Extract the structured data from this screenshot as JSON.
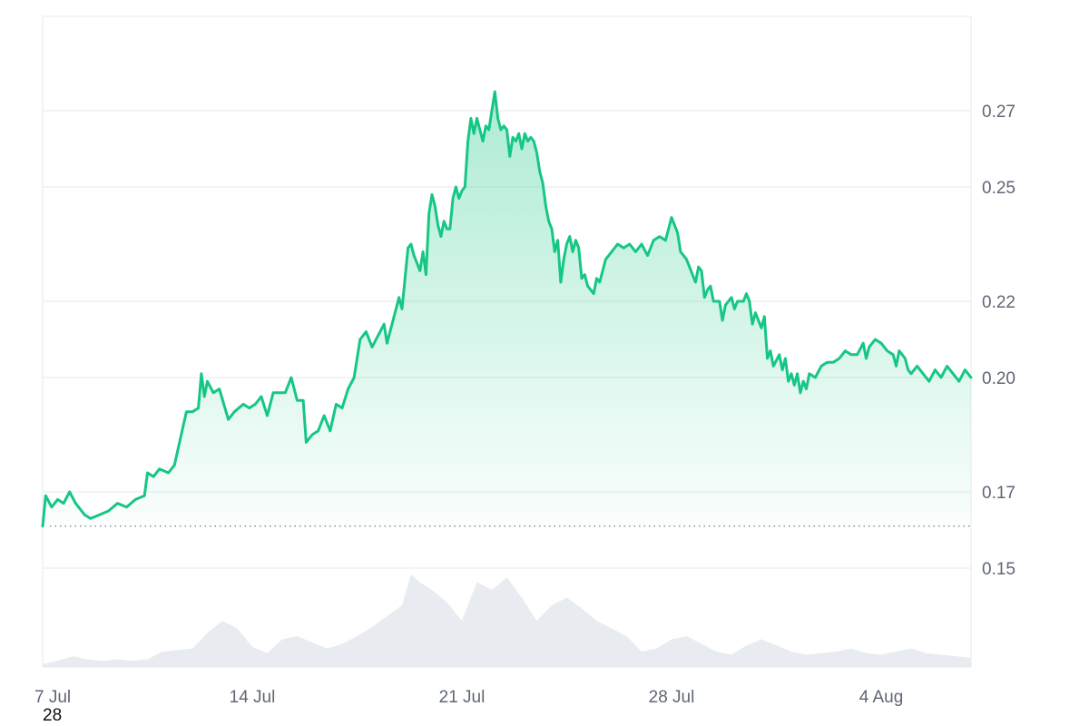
{
  "chart_data": {
    "type": "area",
    "y_ticks": [
      "0.27",
      "0.25",
      "0.22",
      "0.20",
      "0.17",
      "0.15"
    ],
    "y_tick_values": [
      0.27,
      0.25,
      0.22,
      0.2,
      0.17,
      0.15
    ],
    "ylim": [
      0.13,
      0.29
    ],
    "x_ticks": [
      "7 Jul",
      "14 Jul",
      "21 Jul",
      "28 Jul",
      "4 Aug"
    ],
    "x_tick_days": [
      0,
      7,
      14,
      21,
      28
    ],
    "xlim_days": [
      0,
      31
    ],
    "baseline": 0.161,
    "grid": true,
    "series": [
      {
        "values": [
          [
            0.0,
            0.161
          ],
          [
            0.1,
            0.169
          ],
          [
            0.3,
            0.166
          ],
          [
            0.5,
            0.168
          ],
          [
            0.7,
            0.167
          ],
          [
            0.9,
            0.17
          ],
          [
            1.1,
            0.167
          ],
          [
            1.4,
            0.164
          ],
          [
            1.6,
            0.163
          ],
          [
            1.9,
            0.164
          ],
          [
            2.2,
            0.165
          ],
          [
            2.5,
            0.167
          ],
          [
            2.8,
            0.166
          ],
          [
            3.1,
            0.168
          ],
          [
            3.4,
            0.169
          ],
          [
            3.5,
            0.175
          ],
          [
            3.7,
            0.174
          ],
          [
            3.9,
            0.176
          ],
          [
            4.2,
            0.175
          ],
          [
            4.4,
            0.177
          ],
          [
            4.6,
            0.184
          ],
          [
            4.8,
            0.191
          ],
          [
            5.0,
            0.191
          ],
          [
            5.2,
            0.192
          ],
          [
            5.3,
            0.201
          ],
          [
            5.4,
            0.195
          ],
          [
            5.5,
            0.199
          ],
          [
            5.7,
            0.196
          ],
          [
            5.9,
            0.197
          ],
          [
            6.2,
            0.189
          ],
          [
            6.4,
            0.191
          ],
          [
            6.7,
            0.193
          ],
          [
            6.9,
            0.192
          ],
          [
            7.1,
            0.193
          ],
          [
            7.3,
            0.195
          ],
          [
            7.5,
            0.19
          ],
          [
            7.7,
            0.196
          ],
          [
            7.9,
            0.196
          ],
          [
            8.1,
            0.196
          ],
          [
            8.3,
            0.2
          ],
          [
            8.5,
            0.194
          ],
          [
            8.7,
            0.194
          ],
          [
            8.8,
            0.183
          ],
          [
            9.0,
            0.185
          ],
          [
            9.2,
            0.186
          ],
          [
            9.4,
            0.19
          ],
          [
            9.6,
            0.186
          ],
          [
            9.8,
            0.193
          ],
          [
            10.0,
            0.192
          ],
          [
            10.2,
            0.197
          ],
          [
            10.4,
            0.2
          ],
          [
            10.6,
            0.21
          ],
          [
            10.8,
            0.212
          ],
          [
            11.0,
            0.208
          ],
          [
            11.2,
            0.211
          ],
          [
            11.4,
            0.214
          ],
          [
            11.5,
            0.209
          ],
          [
            11.7,
            0.215
          ],
          [
            11.9,
            0.221
          ],
          [
            12.0,
            0.218
          ],
          [
            12.1,
            0.226
          ],
          [
            12.2,
            0.234
          ],
          [
            12.3,
            0.235
          ],
          [
            12.4,
            0.232
          ],
          [
            12.5,
            0.23
          ],
          [
            12.6,
            0.228
          ],
          [
            12.7,
            0.233
          ],
          [
            12.8,
            0.227
          ],
          [
            12.9,
            0.243
          ],
          [
            13.0,
            0.248
          ],
          [
            13.1,
            0.245
          ],
          [
            13.2,
            0.24
          ],
          [
            13.3,
            0.237
          ],
          [
            13.4,
            0.241
          ],
          [
            13.5,
            0.239
          ],
          [
            13.6,
            0.239
          ],
          [
            13.7,
            0.247
          ],
          [
            13.8,
            0.25
          ],
          [
            13.9,
            0.247
          ],
          [
            14.0,
            0.249
          ],
          [
            14.1,
            0.25
          ],
          [
            14.2,
            0.262
          ],
          [
            14.3,
            0.268
          ],
          [
            14.4,
            0.264
          ],
          [
            14.5,
            0.268
          ],
          [
            14.6,
            0.265
          ],
          [
            14.7,
            0.262
          ],
          [
            14.8,
            0.266
          ],
          [
            14.9,
            0.265
          ],
          [
            15.0,
            0.27
          ],
          [
            15.1,
            0.275
          ],
          [
            15.2,
            0.268
          ],
          [
            15.3,
            0.265
          ],
          [
            15.4,
            0.266
          ],
          [
            15.5,
            0.265
          ],
          [
            15.6,
            0.258
          ],
          [
            15.7,
            0.263
          ],
          [
            15.8,
            0.262
          ],
          [
            15.9,
            0.264
          ],
          [
            16.0,
            0.26
          ],
          [
            16.1,
            0.264
          ],
          [
            16.2,
            0.262
          ],
          [
            16.3,
            0.263
          ],
          [
            16.4,
            0.262
          ],
          [
            16.5,
            0.259
          ],
          [
            16.6,
            0.254
          ],
          [
            16.7,
            0.251
          ],
          [
            16.8,
            0.245
          ],
          [
            16.9,
            0.241
          ],
          [
            17.0,
            0.239
          ],
          [
            17.1,
            0.233
          ],
          [
            17.2,
            0.236
          ],
          [
            17.3,
            0.225
          ],
          [
            17.4,
            0.231
          ],
          [
            17.5,
            0.235
          ],
          [
            17.6,
            0.237
          ],
          [
            17.7,
            0.233
          ],
          [
            17.8,
            0.236
          ],
          [
            17.9,
            0.234
          ],
          [
            18.0,
            0.226
          ],
          [
            18.1,
            0.227
          ],
          [
            18.2,
            0.224
          ],
          [
            18.4,
            0.222
          ],
          [
            18.5,
            0.226
          ],
          [
            18.6,
            0.225
          ],
          [
            18.8,
            0.231
          ],
          [
            19.0,
            0.233
          ],
          [
            19.2,
            0.235
          ],
          [
            19.4,
            0.234
          ],
          [
            19.6,
            0.235
          ],
          [
            19.8,
            0.233
          ],
          [
            20.0,
            0.235
          ],
          [
            20.2,
            0.232
          ],
          [
            20.4,
            0.236
          ],
          [
            20.6,
            0.237
          ],
          [
            20.8,
            0.236
          ],
          [
            21.0,
            0.242
          ],
          [
            21.1,
            0.24
          ],
          [
            21.2,
            0.238
          ],
          [
            21.3,
            0.233
          ],
          [
            21.4,
            0.232
          ],
          [
            21.5,
            0.231
          ],
          [
            21.6,
            0.229
          ],
          [
            21.7,
            0.227
          ],
          [
            21.8,
            0.225
          ],
          [
            21.9,
            0.229
          ],
          [
            22.0,
            0.228
          ],
          [
            22.1,
            0.221
          ],
          [
            22.2,
            0.223
          ],
          [
            22.3,
            0.224
          ],
          [
            22.4,
            0.22
          ],
          [
            22.6,
            0.22
          ],
          [
            22.7,
            0.215
          ],
          [
            22.8,
            0.219
          ],
          [
            23.0,
            0.221
          ],
          [
            23.1,
            0.218
          ],
          [
            23.2,
            0.22
          ],
          [
            23.4,
            0.22
          ],
          [
            23.5,
            0.222
          ],
          [
            23.6,
            0.22
          ],
          [
            23.7,
            0.214
          ],
          [
            23.8,
            0.217
          ],
          [
            24.0,
            0.213
          ],
          [
            24.1,
            0.216
          ],
          [
            24.2,
            0.205
          ],
          [
            24.3,
            0.207
          ],
          [
            24.4,
            0.203
          ],
          [
            24.6,
            0.206
          ],
          [
            24.7,
            0.202
          ],
          [
            24.8,
            0.205
          ],
          [
            24.9,
            0.199
          ],
          [
            25.0,
            0.201
          ],
          [
            25.1,
            0.198
          ],
          [
            25.2,
            0.201
          ],
          [
            25.3,
            0.196
          ],
          [
            25.4,
            0.199
          ],
          [
            25.5,
            0.197
          ],
          [
            25.6,
            0.201
          ],
          [
            25.8,
            0.2
          ],
          [
            26.0,
            0.203
          ],
          [
            26.2,
            0.204
          ],
          [
            26.4,
            0.204
          ],
          [
            26.6,
            0.205
          ],
          [
            26.8,
            0.207
          ],
          [
            27.0,
            0.206
          ],
          [
            27.2,
            0.206
          ],
          [
            27.4,
            0.209
          ],
          [
            27.5,
            0.205
          ],
          [
            27.6,
            0.208
          ],
          [
            27.8,
            0.21
          ],
          [
            28.0,
            0.209
          ],
          [
            28.2,
            0.207
          ],
          [
            28.4,
            0.206
          ],
          [
            28.5,
            0.203
          ],
          [
            28.6,
            0.207
          ],
          [
            28.8,
            0.205
          ],
          [
            28.9,
            0.202
          ],
          [
            29.0,
            0.201
          ],
          [
            29.2,
            0.203
          ],
          [
            29.4,
            0.201
          ],
          [
            29.6,
            0.199
          ],
          [
            29.8,
            0.202
          ],
          [
            30.0,
            0.2
          ],
          [
            30.2,
            0.203
          ],
          [
            30.4,
            0.201
          ],
          [
            30.6,
            0.199
          ],
          [
            30.8,
            0.202
          ],
          [
            31.0,
            0.2
          ]
        ]
      }
    ],
    "volume": {
      "values": [
        [
          0,
          0.02
        ],
        [
          0.5,
          0.04
        ],
        [
          1,
          0.07
        ],
        [
          1.5,
          0.05
        ],
        [
          2,
          0.04
        ],
        [
          2.5,
          0.05
        ],
        [
          3,
          0.04
        ],
        [
          3.5,
          0.05
        ],
        [
          4,
          0.1
        ],
        [
          4.5,
          0.11
        ],
        [
          5,
          0.12
        ],
        [
          5.5,
          0.22
        ],
        [
          6,
          0.3
        ],
        [
          6.5,
          0.25
        ],
        [
          7,
          0.13
        ],
        [
          7.5,
          0.09
        ],
        [
          8,
          0.18
        ],
        [
          8.5,
          0.2
        ],
        [
          9,
          0.16
        ],
        [
          9.5,
          0.12
        ],
        [
          10,
          0.15
        ],
        [
          10.5,
          0.2
        ],
        [
          11,
          0.26
        ],
        [
          11.5,
          0.33
        ],
        [
          12,
          0.4
        ],
        [
          12.3,
          0.6
        ],
        [
          12.6,
          0.55
        ],
        [
          13,
          0.5
        ],
        [
          13.5,
          0.42
        ],
        [
          14,
          0.3
        ],
        [
          14.5,
          0.55
        ],
        [
          15,
          0.5
        ],
        [
          15.5,
          0.58
        ],
        [
          16,
          0.45
        ],
        [
          16.5,
          0.3
        ],
        [
          17,
          0.4
        ],
        [
          17.5,
          0.45
        ],
        [
          18,
          0.38
        ],
        [
          18.5,
          0.3
        ],
        [
          19,
          0.25
        ],
        [
          19.5,
          0.2
        ],
        [
          20,
          0.1
        ],
        [
          20.5,
          0.12
        ],
        [
          21,
          0.18
        ],
        [
          21.5,
          0.2
        ],
        [
          22,
          0.15
        ],
        [
          22.5,
          0.1
        ],
        [
          23,
          0.08
        ],
        [
          23.5,
          0.14
        ],
        [
          24,
          0.18
        ],
        [
          24.5,
          0.14
        ],
        [
          25,
          0.1
        ],
        [
          25.5,
          0.08
        ],
        [
          26,
          0.09
        ],
        [
          26.5,
          0.1
        ],
        [
          27,
          0.12
        ],
        [
          27.5,
          0.09
        ],
        [
          28,
          0.08
        ],
        [
          28.5,
          0.1
        ],
        [
          29,
          0.12
        ],
        [
          29.5,
          0.09
        ],
        [
          30,
          0.08
        ],
        [
          30.5,
          0.07
        ],
        [
          31,
          0.06
        ]
      ]
    }
  },
  "footnote": "28",
  "colors": {
    "line": "#16c784",
    "fill_top": "#16c784",
    "grid": "#e7eaef",
    "baseline": "#8a8f98",
    "volume": "#e8ecf1"
  }
}
